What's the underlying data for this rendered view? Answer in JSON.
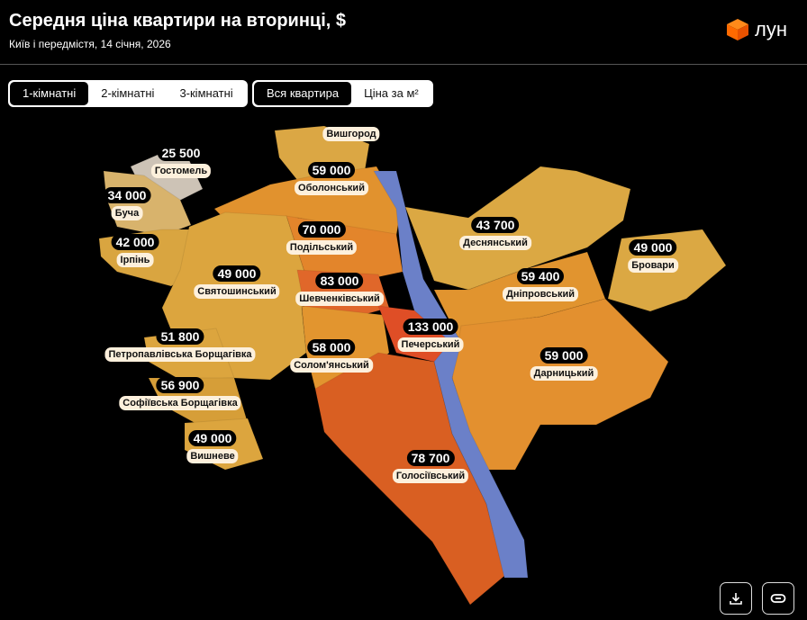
{
  "header": {
    "title": "Середня ціна квартири на вторинці, $",
    "subtitle": "Київ і передмістя, 14 січня, 2026",
    "logo_text": "лун",
    "logo_icon": "orange-cube-icon"
  },
  "room_tabs": [
    {
      "label": "1-кімнатні",
      "active": true
    },
    {
      "label": "2-кімнатні",
      "active": false
    },
    {
      "label": "3-кімнатні",
      "active": false
    }
  ],
  "price_tabs": [
    {
      "label": "Вся квартира",
      "active": true
    },
    {
      "label": "Ціна за м²",
      "active": false
    }
  ],
  "colors": {
    "river": "#6b80c8",
    "label_bg": "#fdf0dc",
    "accent": "#ff6a00"
  },
  "districts": [
    {
      "id": "vyshhorod",
      "name": "Вишгород",
      "price": "",
      "color": "#dba744"
    },
    {
      "id": "hostomel",
      "name": "Гостомель",
      "price": "25 500",
      "color": "#cdc3b6"
    },
    {
      "id": "bucha",
      "name": "Буча",
      "price": "34 000",
      "color": "#d8b36c"
    },
    {
      "id": "irpin",
      "name": "Ірпінь",
      "price": "42 000",
      "color": "#d9a540"
    },
    {
      "id": "obolonskyi",
      "name": "Оболонський",
      "price": "59 000",
      "color": "#e1922e"
    },
    {
      "id": "podilskyi",
      "name": "Подільський",
      "price": "70 000",
      "color": "#e3852b"
    },
    {
      "id": "sviatoshynskyi",
      "name": "Святошинський",
      "price": "49 000",
      "color": "#dca53e"
    },
    {
      "id": "shevchenkivskyi",
      "name": "Шевченківський",
      "price": "83 000",
      "color": "#e0672a"
    },
    {
      "id": "pecherskyi",
      "name": "Печерський",
      "price": "133 000",
      "color": "#df4e26"
    },
    {
      "id": "solomianskyi",
      "name": "Солом'янський",
      "price": "58 000",
      "color": "#e2952f"
    },
    {
      "id": "petropavlivska",
      "name": "Петропавлівська Борщагівка",
      "price": "51 800",
      "color": "#dca53e"
    },
    {
      "id": "sofiivska",
      "name": "Софіївська Борщагівка",
      "price": "56 900",
      "color": "#d69e38"
    },
    {
      "id": "vyshneve",
      "name": "Вишневе",
      "price": "49 000",
      "color": "#dca53e"
    },
    {
      "id": "holosiivskyi",
      "name": "Голосіївський",
      "price": "78 700",
      "color": "#d95f22"
    },
    {
      "id": "desnianskyi",
      "name": "Деснянський",
      "price": "43 700",
      "color": "#dba843"
    },
    {
      "id": "dniprovskyi",
      "name": "Дніпровський",
      "price": "59 400",
      "color": "#e1942f"
    },
    {
      "id": "darnytskyi",
      "name": "Дарницький",
      "price": "59 000",
      "color": "#e3902f"
    },
    {
      "id": "brovary",
      "name": "Бровари",
      "price": "49 000",
      "color": "#dba843"
    }
  ],
  "actions": [
    {
      "id": "download",
      "icon": "download-icon"
    },
    {
      "id": "copy-link",
      "icon": "link-icon"
    }
  ]
}
